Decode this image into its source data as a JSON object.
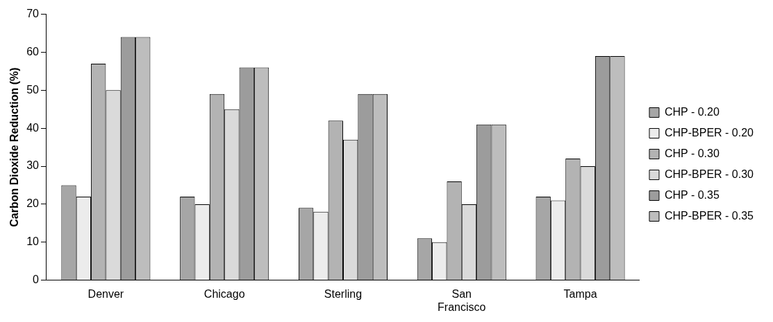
{
  "chart_data": {
    "type": "bar",
    "ylabel": "Carbon Dioxide Reduction (%)",
    "categories": [
      "Denver",
      "Chicago",
      "Sterling",
      "San Francisco",
      "Tampa"
    ],
    "series": [
      {
        "name": "CHP - 0.20",
        "color": "#a6a6a6",
        "values": [
          25,
          22,
          19,
          11,
          22
        ]
      },
      {
        "name": "CHP-BPER - 0.20",
        "color": "#ececec",
        "values": [
          22,
          20,
          18,
          10,
          21
        ]
      },
      {
        "name": "CHP - 0.30",
        "color": "#b3b3b3",
        "values": [
          57,
          49,
          42,
          26,
          32
        ]
      },
      {
        "name": "CHP-BPER - 0.30",
        "color": "#dadada",
        "values": [
          50,
          45,
          37,
          20,
          30
        ]
      },
      {
        "name": "CHP - 0.35",
        "color": "#9c9c9c",
        "values": [
          64,
          56,
          49,
          41,
          59
        ]
      },
      {
        "name": "CHP-BPER - 0.35",
        "color": "#bdbdbd",
        "values": [
          64,
          56,
          49,
          41,
          59
        ]
      }
    ],
    "ylim": [
      0,
      70
    ],
    "yticks": [
      0,
      10,
      20,
      30,
      40,
      50,
      60,
      70
    ],
    "grid": false,
    "legend": "right"
  }
}
